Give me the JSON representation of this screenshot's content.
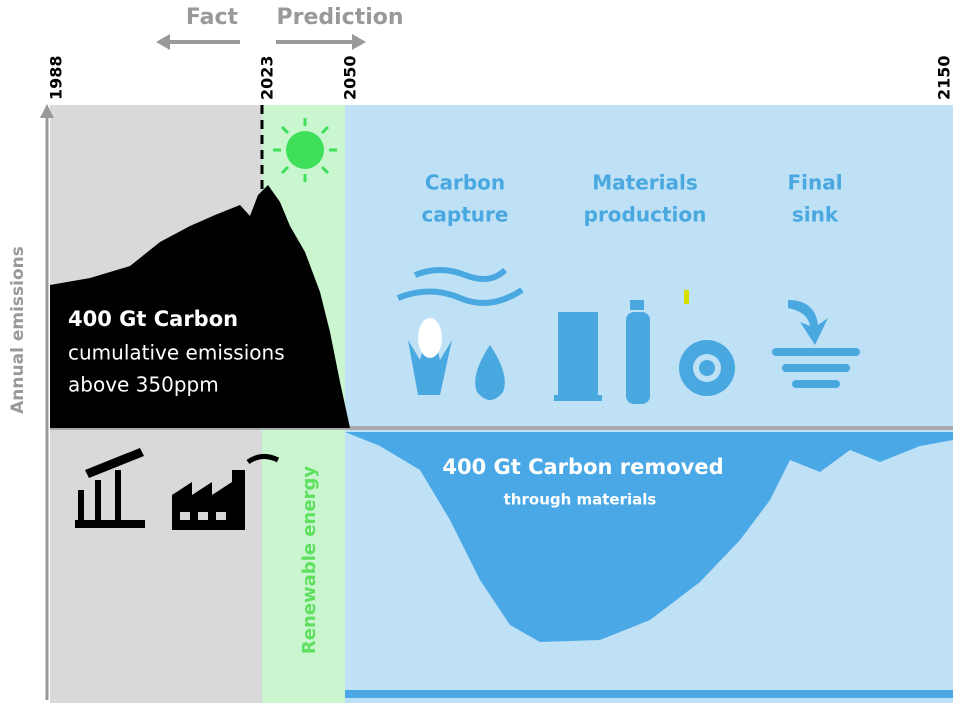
{
  "header": {
    "fact": "Fact",
    "prediction": "Prediction"
  },
  "timeline": {
    "years": [
      "1988",
      "2023",
      "2050",
      "2150"
    ]
  },
  "axis_label": "Annual emissions",
  "emissions": {
    "lines": [
      "400 Gt Carbon",
      "cumulative emissions",
      "above 350ppm"
    ]
  },
  "renewable_label": "Renewable energy",
  "stages": [
    {
      "lines": [
        "Carbon",
        "capture"
      ]
    },
    {
      "lines": [
        "Materials",
        "production"
      ]
    },
    {
      "lines": [
        "Final",
        "sink"
      ]
    }
  ],
  "removal": {
    "title": "400 Gt Carbon removed",
    "subtitle": "through materials"
  }
}
